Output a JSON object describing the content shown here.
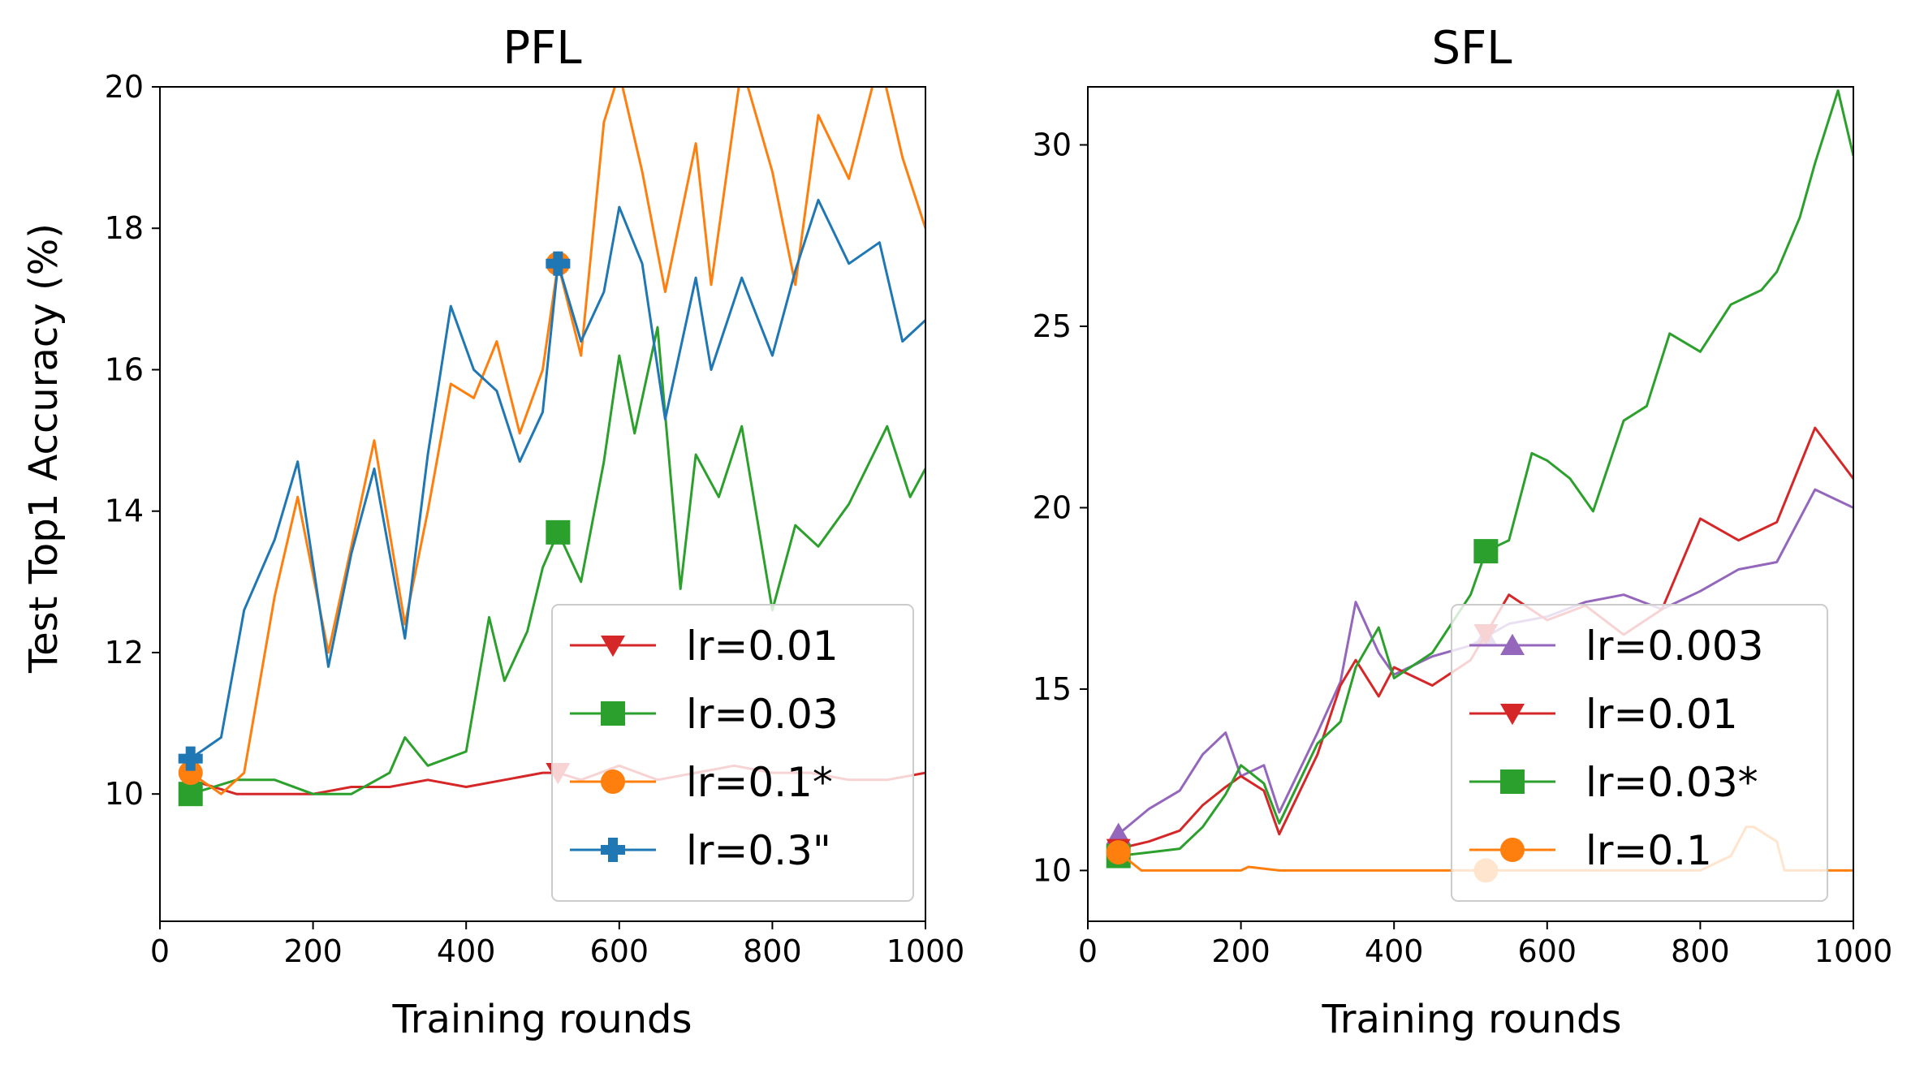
{
  "chart_data": [
    {
      "type": "line",
      "title": "PFL",
      "xlabel": "Training rounds",
      "ylabel": "Test Top1 Accuracy (%)",
      "xlim": [
        0,
        1000
      ],
      "ylim": [
        8.2,
        20
      ],
      "xticks": [
        0,
        200,
        400,
        600,
        800,
        1000
      ],
      "yticks": [
        10,
        12,
        14,
        16,
        18,
        20
      ],
      "legend_position": "lower-right",
      "series": [
        {
          "name": "lr=0.01",
          "color": "#d62728",
          "marker": "triangle-down",
          "x": [
            40,
            100,
            150,
            200,
            250,
            300,
            350,
            400,
            450,
            500,
            520,
            550,
            600,
            650,
            700,
            750,
            800,
            850,
            900,
            950,
            1000
          ],
          "y": [
            10.2,
            10.0,
            10.0,
            10.0,
            10.1,
            10.1,
            10.2,
            10.1,
            10.2,
            10.3,
            10.3,
            10.2,
            10.4,
            10.2,
            10.3,
            10.4,
            10.3,
            10.3,
            10.2,
            10.2,
            10.3
          ]
        },
        {
          "name": "lr=0.03",
          "color": "#2ca02c",
          "marker": "square",
          "x": [
            40,
            100,
            150,
            200,
            250,
            300,
            320,
            350,
            400,
            430,
            450,
            480,
            500,
            520,
            550,
            580,
            600,
            620,
            650,
            680,
            700,
            730,
            760,
            800,
            830,
            860,
            900,
            950,
            980,
            1000
          ],
          "y": [
            10.0,
            10.2,
            10.2,
            10.0,
            10.0,
            10.3,
            10.8,
            10.4,
            10.6,
            12.5,
            11.6,
            12.3,
            13.2,
            13.7,
            13.0,
            14.7,
            16.2,
            15.1,
            16.6,
            12.9,
            14.8,
            14.2,
            15.2,
            12.6,
            13.8,
            13.5,
            14.1,
            15.2,
            14.2,
            14.6
          ]
        },
        {
          "name": "lr=0.1*",
          "color": "#ff7f0e",
          "marker": "circle",
          "x": [
            40,
            80,
            110,
            150,
            180,
            220,
            250,
            280,
            320,
            350,
            380,
            410,
            440,
            470,
            500,
            520,
            550,
            580,
            600,
            630,
            660,
            700,
            720,
            760,
            800,
            830,
            860,
            900,
            940,
            970,
            1000
          ],
          "y": [
            10.3,
            10.0,
            10.3,
            12.8,
            14.2,
            12.0,
            13.5,
            15.0,
            12.4,
            14.0,
            15.8,
            15.6,
            16.4,
            15.1,
            16.0,
            17.5,
            16.2,
            19.5,
            20.2,
            18.8,
            17.1,
            19.2,
            17.2,
            20.3,
            18.8,
            17.2,
            19.6,
            18.7,
            20.4,
            19.0,
            18.0
          ]
        },
        {
          "name": "lr=0.3\"",
          "color": "#1f77b4",
          "marker": "plus",
          "x": [
            40,
            80,
            110,
            150,
            180,
            220,
            250,
            280,
            320,
            350,
            380,
            410,
            440,
            470,
            500,
            520,
            550,
            580,
            600,
            630,
            660,
            700,
            720,
            760,
            800,
            830,
            860,
            900,
            940,
            970,
            1000
          ],
          "y": [
            10.5,
            10.8,
            12.6,
            13.6,
            14.7,
            11.8,
            13.4,
            14.6,
            12.2,
            14.8,
            16.9,
            16.0,
            15.7,
            14.7,
            15.4,
            17.5,
            16.4,
            17.1,
            18.3,
            17.5,
            15.3,
            17.3,
            16.0,
            17.3,
            16.2,
            17.4,
            18.4,
            17.5,
            17.8,
            16.4,
            16.7
          ]
        }
      ]
    },
    {
      "type": "line",
      "title": "SFL",
      "xlabel": "Training rounds",
      "ylabel": "",
      "xlim": [
        0,
        1000
      ],
      "ylim": [
        8.6,
        31.6
      ],
      "xticks": [
        0,
        200,
        400,
        600,
        800,
        1000
      ],
      "yticks": [
        10,
        15,
        20,
        25,
        30
      ],
      "legend_position": "lower-right",
      "series": [
        {
          "name": "lr=0.003",
          "color": "#9467bd",
          "marker": "triangle-up",
          "x": [
            40,
            80,
            120,
            150,
            180,
            200,
            230,
            250,
            300,
            330,
            350,
            380,
            400,
            450,
            500,
            550,
            600,
            650,
            700,
            750,
            800,
            850,
            900,
            950,
            1000
          ],
          "y": [
            11.0,
            11.7,
            12.2,
            13.2,
            13.8,
            12.6,
            12.9,
            11.6,
            13.8,
            15.2,
            17.4,
            16.0,
            15.4,
            15.9,
            16.2,
            16.8,
            17.0,
            17.4,
            17.6,
            17.2,
            17.7,
            18.3,
            18.5,
            20.5,
            20.0
          ]
        },
        {
          "name": "lr=0.01",
          "color": "#d62728",
          "marker": "triangle-down",
          "x": [
            40,
            80,
            120,
            150,
            180,
            200,
            230,
            250,
            300,
            330,
            350,
            380,
            400,
            450,
            500,
            550,
            600,
            650,
            700,
            750,
            800,
            850,
            900,
            950,
            1000
          ],
          "y": [
            10.6,
            10.8,
            11.1,
            11.8,
            12.3,
            12.6,
            12.2,
            11.0,
            13.2,
            15.1,
            15.8,
            14.8,
            15.6,
            15.1,
            15.8,
            17.6,
            16.9,
            17.3,
            16.5,
            17.2,
            19.7,
            19.1,
            19.6,
            22.2,
            20.8
          ]
        },
        {
          "name": "lr=0.03*",
          "color": "#2ca02c",
          "marker": "square",
          "x": [
            40,
            80,
            120,
            150,
            180,
            200,
            230,
            250,
            300,
            330,
            350,
            380,
            400,
            450,
            500,
            520,
            550,
            580,
            600,
            630,
            660,
            700,
            730,
            760,
            800,
            840,
            880,
            900,
            930,
            950,
            980,
            1000
          ],
          "y": [
            10.4,
            10.5,
            10.6,
            11.2,
            12.1,
            12.9,
            12.4,
            11.3,
            13.5,
            14.1,
            15.6,
            16.7,
            15.3,
            16.0,
            17.6,
            18.8,
            19.1,
            21.5,
            21.3,
            20.8,
            19.9,
            22.4,
            22.8,
            24.8,
            24.3,
            25.6,
            26.0,
            26.5,
            28.0,
            29.5,
            31.5,
            29.7
          ]
        },
        {
          "name": "lr=0.1",
          "color": "#ff7f0e",
          "marker": "circle",
          "x": [
            40,
            70,
            100,
            200,
            210,
            250,
            400,
            600,
            800,
            840,
            860,
            870,
            900,
            910,
            950,
            1000
          ],
          "y": [
            10.5,
            10.0,
            10.0,
            10.0,
            10.1,
            10.0,
            10.0,
            10.0,
            10.0,
            10.4,
            11.2,
            11.2,
            10.8,
            10.0,
            10.0,
            10.0
          ]
        }
      ]
    }
  ]
}
